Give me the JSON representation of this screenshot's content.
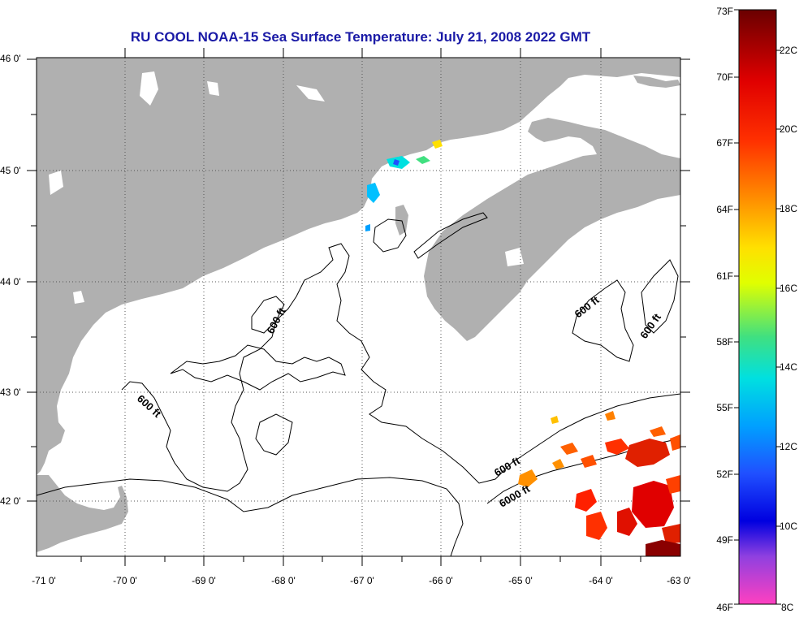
{
  "title": "RU COOL  NOAA-15  Sea Surface Temperature:  July 21, 2008 2022 GMT",
  "longitude_ticks": [
    "-71 0'",
    "-70 0'",
    "-69 0'",
    "-68 0'",
    "-67 0'",
    "-66 0'",
    "-65 0'",
    "-64 0'",
    "-63 0'"
  ],
  "latitude_ticks": [
    "46 0'",
    "45 0'",
    "44 0'",
    "43 0'",
    "42 0'"
  ],
  "contour_labels": [
    "600 ft",
    "600 ft",
    "600 ft",
    "600 ft",
    "600 ft",
    "6000 ft"
  ],
  "colorbar": {
    "fahrenheit_labels": [
      "73F",
      "70F",
      "67F",
      "64F",
      "61F",
      "58F",
      "55F",
      "52F",
      "49F",
      "46F"
    ],
    "celsius_labels": [
      "22C",
      "20C",
      "18C",
      "16C",
      "14C",
      "12C",
      "10C",
      "8C"
    ]
  },
  "colors": {
    "land": "#b0b0b0",
    "water": "#ffffff",
    "title": "#1a1aa6"
  }
}
